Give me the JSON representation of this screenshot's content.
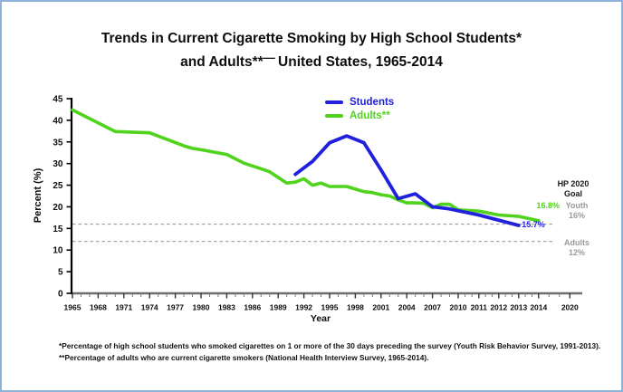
{
  "window": {
    "border_color": "#8fb2d9",
    "background": "#ffffff"
  },
  "title": {
    "line1": "Trends in Current Cigarette Smoking by High School Students*",
    "line2_prefix": "and Adults**",
    "line2_dash": "—",
    "line2_suffix": " United States, 1965-2014"
  },
  "legend": {
    "items": [
      {
        "label": "Students",
        "color": "#2121dd"
      },
      {
        "label": "Adults**",
        "color": "#4fd31c"
      }
    ]
  },
  "annotations": {
    "hp_goal": {
      "line1": "HP 2020",
      "line2": "Goal",
      "color": "#1a1a1a"
    },
    "adults_end_value": {
      "text": "16.8%"
    },
    "youth_goal": {
      "line1": "Youth",
      "line2": "16%",
      "color": "#9a9a9a"
    },
    "students_end_value": {
      "text": "15.7%"
    },
    "adults_goal": {
      "line1": "Adults",
      "line2": "12%",
      "color": "#9a9a9a"
    }
  },
  "footnotes": {
    "line1": "*Percentage of high school students who smoked cigarettes on 1 or more of the 30 days preceding the survey (Youth Risk Behavior Survey, 1991-2013).",
    "line2": "**Percentage of adults who are current cigarette smokers (National Health Interview Survey, 1965-2014)."
  },
  "chart_data": {
    "type": "line",
    "title": "Trends in Current Cigarette Smoking by High School Students* and Adults** — United States, 1965-2014",
    "xlabel": "Year",
    "ylabel": "Percent (%)",
    "ylim": [
      0,
      45
    ],
    "ytick_step": 5,
    "yticks": [
      0,
      5,
      10,
      15,
      20,
      25,
      30,
      35,
      40,
      45
    ],
    "xticks": [
      1965,
      1968,
      1971,
      1974,
      1977,
      1980,
      1983,
      1986,
      1989,
      1992,
      1995,
      1998,
      2001,
      2004,
      2007,
      2010,
      2011,
      2012,
      2013,
      2014,
      2020
    ],
    "grid": false,
    "legend_position": "top-center-inside",
    "goal_lines": [
      {
        "label": "Youth",
        "value": 16
      },
      {
        "label": "Adults",
        "value": 12
      }
    ],
    "series": [
      {
        "name": "Students",
        "color": "#2121dd",
        "points": [
          [
            1991,
            27.5
          ],
          [
            1993,
            30.5
          ],
          [
            1995,
            34.8
          ],
          [
            1997,
            36.4
          ],
          [
            1999,
            34.8
          ],
          [
            2001,
            28.5
          ],
          [
            2003,
            21.9
          ],
          [
            2005,
            23.0
          ],
          [
            2007,
            20.0
          ],
          [
            2009,
            19.5
          ],
          [
            2011,
            18.1
          ],
          [
            2013,
            15.7
          ]
        ]
      },
      {
        "name": "Adults**",
        "color": "#4fd31c",
        "points": [
          [
            1965,
            42.4
          ],
          [
            1970,
            37.4
          ],
          [
            1974,
            37.1
          ],
          [
            1978,
            34.1
          ],
          [
            1979,
            33.5
          ],
          [
            1980,
            33.2
          ],
          [
            1983,
            32.1
          ],
          [
            1985,
            30.1
          ],
          [
            1987,
            28.8
          ],
          [
            1988,
            28.1
          ],
          [
            1990,
            25.5
          ],
          [
            1991,
            25.7
          ],
          [
            1992,
            26.5
          ],
          [
            1993,
            25.0
          ],
          [
            1994,
            25.5
          ],
          [
            1995,
            24.7
          ],
          [
            1997,
            24.7
          ],
          [
            1998,
            24.1
          ],
          [
            1999,
            23.5
          ],
          [
            2000,
            23.3
          ],
          [
            2001,
            22.8
          ],
          [
            2002,
            22.5
          ],
          [
            2003,
            21.6
          ],
          [
            2004,
            20.9
          ],
          [
            2005,
            20.9
          ],
          [
            2006,
            20.8
          ],
          [
            2007,
            19.8
          ],
          [
            2008,
            20.6
          ],
          [
            2009,
            20.6
          ],
          [
            2010,
            19.3
          ],
          [
            2011,
            19.0
          ],
          [
            2012,
            18.1
          ],
          [
            2013,
            17.8
          ],
          [
            2014,
            16.8
          ]
        ]
      }
    ]
  }
}
